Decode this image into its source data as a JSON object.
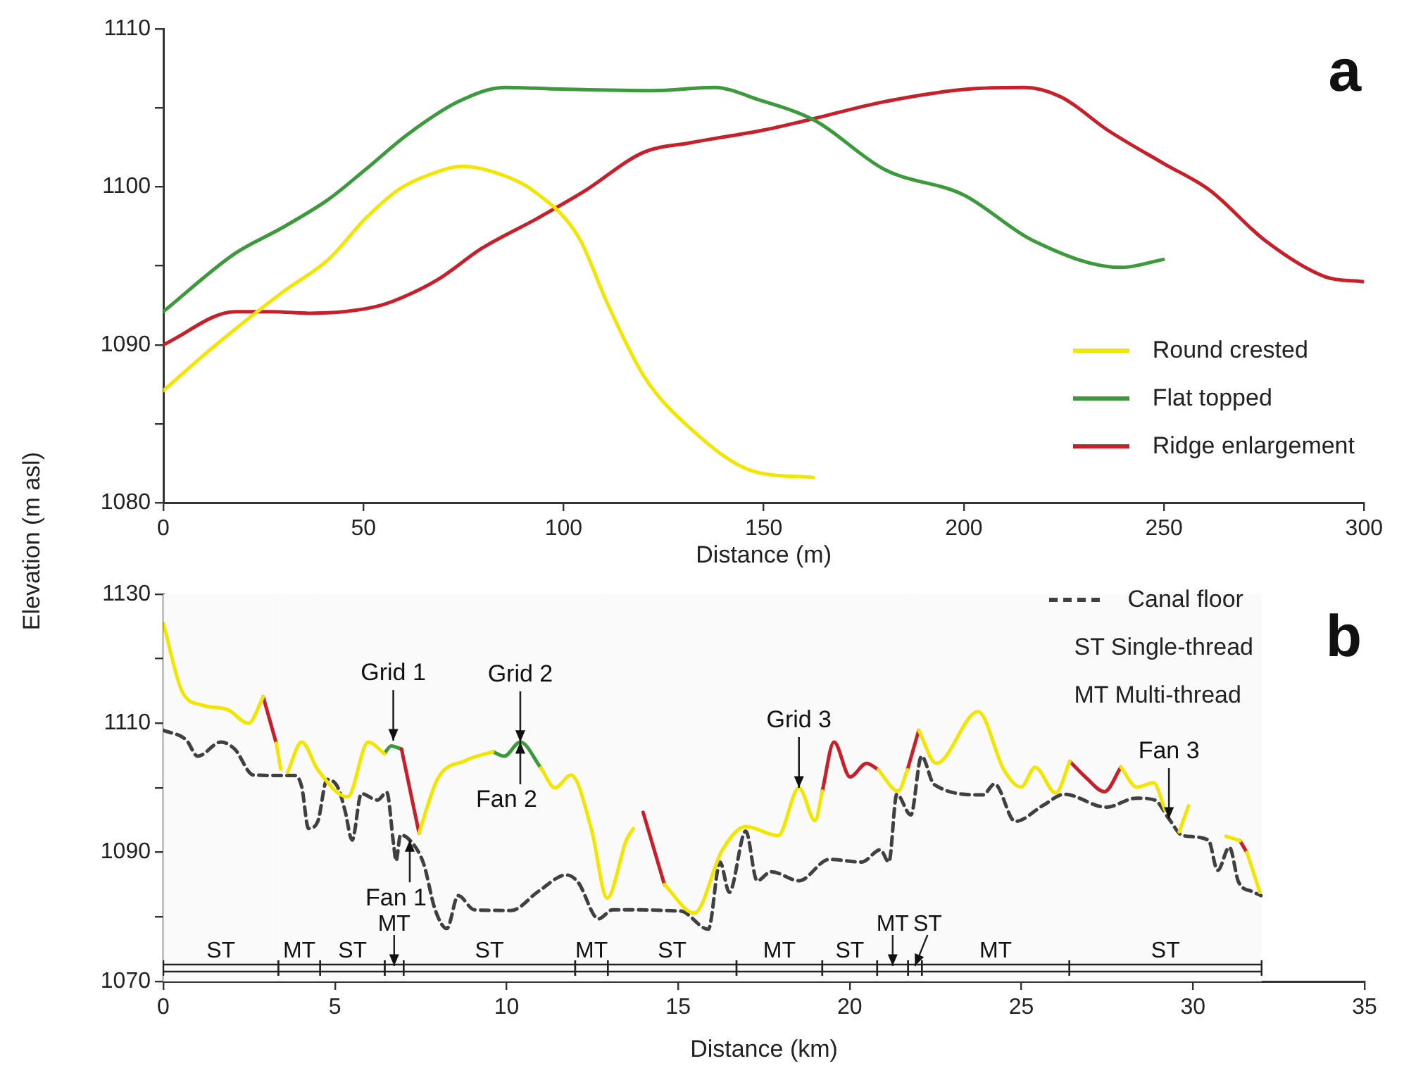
{
  "chart_data": [
    {
      "type": "line",
      "title": "a",
      "xlabel": "Distance (m)",
      "ylabel": "Elevation (m asl)",
      "xlim": [
        0,
        300
      ],
      "xticks": [
        0,
        50,
        100,
        150,
        200,
        250,
        300
      ],
      "ylim": [
        1080,
        1110
      ],
      "yticks": [
        1080,
        {
          "value": 1085,
          "label": null
        },
        1090,
        {
          "value": 1095,
          "label": null
        },
        1100,
        {
          "value": 1105,
          "label": null
        },
        1110
      ],
      "grid": false,
      "legend": "bottom right",
      "marker": "none",
      "series": [
        {
          "name": "Round crested",
          "color": "#f2e600",
          "x": [
            0,
            12.2,
            29.6,
            41.2,
            50.5,
            58.6,
            66.7,
            74.8,
            85.3,
            92.2,
            103.8,
            110.8,
            120.1,
            131.7,
            147.3,
            162.4
          ],
          "values": [
            1087.1,
            1089.8,
            1093.3,
            1095.4,
            1098,
            1099.8,
            1100.8,
            1101.3,
            1100.7,
            1099.8,
            1096.8,
            1092.7,
            1088,
            1084.7,
            1082,
            1081.6
          ]
        },
        {
          "name": "Flat topped",
          "color": "#3c9a3c",
          "x": [
            0,
            18,
            29.6,
            41.2,
            50.5,
            60.9,
            73.7,
            85.3,
            99.2,
            122.4,
            137.5,
            149,
            162.8,
            180.2,
            199.9,
            217.3,
            239.4,
            249.8
          ],
          "values": [
            1092.1,
            1095.8,
            1097.4,
            1099.2,
            1101.1,
            1103.3,
            1105.4,
            1106.3,
            1106.2,
            1106.1,
            1106.3,
            1105.5,
            1104.2,
            1101.1,
            1099.5,
            1096.6,
            1094.9,
            1095.4
          ]
        },
        {
          "name": "Ridge enlargement",
          "color": "#c8202a",
          "x": [
            0,
            18,
            27.3,
            36.5,
            52.8,
            59.7,
            69,
            79.5,
            93.4,
            105,
            120.1,
            131.7,
            150,
            160.5,
            180.2,
            201.1,
            215.1,
            224.3,
            235.9,
            249.8,
            261.4,
            275.3,
            290.4,
            299.7
          ],
          "values": [
            1090,
            1092.1,
            1092.1,
            1092,
            1092.4,
            1093,
            1094.2,
            1096.1,
            1098,
            1099.7,
            1102.2,
            1102.8,
            1103.6,
            1104.2,
            1105.4,
            1106.2,
            1106.3,
            1105.7,
            1103.6,
            1101.5,
            1099.8,
            1096.6,
            1094.3,
            1094
          ]
        }
      ]
    },
    {
      "type": "line",
      "title": "b",
      "xlabel": "Distance (km)",
      "xlim": [
        0,
        35
      ],
      "xticks": [
        0,
        5,
        10,
        15,
        20,
        25,
        30,
        35
      ],
      "ylim": [
        1070,
        1130
      ],
      "yticks": [
        1070,
        {
          "value": 1080,
          "label": null
        },
        1090,
        {
          "value": 1100,
          "label": null
        },
        1110,
        {
          "value": 1120,
          "label": null
        },
        1130
      ],
      "grid": false,
      "legend": "top right",
      "marker": "none",
      "series": [
        {
          "color": "#f2e600",
          "x": [
            0,
            0.54,
            1.14,
            1.88,
            2.48,
            2.91,
            3.1,
            3.29,
            3.42,
            3.52,
            3.62,
            4.03,
            4.5,
            5.37,
            5.97,
            6.44,
            6.9,
            7.45,
            7.99,
            8.79,
            9.6,
            10.3,
            11.0,
            11.41,
            11.88,
            12.48,
            12.93,
            13.49,
            13.69,
            14.1,
            14.6,
            15.47,
            16.29,
            16.97,
            17.91,
            18.52,
            18.99,
            19.2,
            20.0,
            20.83,
            21.41,
            21.68,
            21.85,
            22.01,
            22.52,
            23.74,
            24.49,
            24.99,
            25.4,
            26.0,
            26.41,
            27.1,
            27.9,
            28.37,
            28.85,
            29.19,
            29.4,
            29.6,
            29.87,
            30.4,
            30.96,
            31.37,
            31.47,
            31.57,
            31.95
          ],
          "values": [
            1125.5,
            1115,
            1112.8,
            1112.1,
            1110,
            1114.1,
            null,
            1106.9,
            1102.9,
            null,
            1102.4,
            1107.1,
            1102.8,
            1098.6,
            1107.1,
            1105.3,
            null,
            1093,
            1101.4,
            1104.2,
            1105.6,
            null,
            1103.1,
            1100,
            1102,
            1093.4,
            1082.9,
            1091.9,
            1093.7,
            null,
            1085,
            1080.6,
            1090.4,
            1094,
            1092.6,
            1100,
            1094.9,
            1099.5,
            null,
            1102.8,
            1099.5,
            1102.8,
            null,
            1108.9,
            1103.8,
            1111.8,
            1102.8,
            1100.1,
            1103.2,
            1099.2,
            1104.1,
            null,
            1103.2,
            1100.1,
            1100.8,
            1096.5,
            null,
            1093.2,
            1097.2,
            null,
            1092.5,
            1091.8,
            null,
            1090,
            1083.8
          ]
        },
        {
          "color": "#c8202a",
          "x": [
            2.91,
            3.29,
            5,
            6.94,
            7.45,
            10,
            13.98,
            14.6,
            17,
            19.2,
            19.54,
            20.01,
            20.49,
            20.83,
            21.2,
            21.68,
            22.01,
            24,
            26.41,
            26.9,
            27.42,
            27.9,
            30,
            31.37,
            31.57
          ],
          "values": [
            1114.1,
            1106.9,
            null,
            1106,
            1093,
            null,
            1096.2,
            1085,
            null,
            1099.5,
            1107.1,
            1101.7,
            1103.8,
            1102.8,
            null,
            1102.8,
            1108.9,
            null,
            1104.1,
            1101.5,
            1099.4,
            1103.2,
            null,
            1091.8,
            1090
          ]
        },
        {
          "color": "#3c9a3c",
          "x": [
            6.44,
            6.64,
            6.94,
            8,
            9.6,
            9.93,
            10.4,
            11.0
          ],
          "values": [
            1105.3,
            1106.5,
            1106,
            null,
            1105.6,
            1104.9,
            1107.1,
            1103.1
          ]
        },
        {
          "name": "Canal floor",
          "color": "#404040",
          "line_style": "dashed",
          "x": [
            0,
            0.67,
            1.0,
            1.68,
            2.08,
            2.62,
            3.42,
            3.83,
            4.03,
            4.23,
            4.5,
            4.77,
            5.1,
            5.3,
            5.5,
            5.77,
            6.24,
            6.51,
            6.71,
            6.78,
            6.91,
            7.18,
            7.58,
            7.92,
            8.26,
            8.59,
            9.06,
            10.13,
            10.94,
            11.74,
            12.08,
            12.68,
            13.09,
            15.07,
            15.88,
            16.22,
            16.49,
            16.97,
            17.3,
            17.71,
            18.52,
            19.4,
            20.35,
            20.89,
            21.14,
            21.37,
            21.78,
            22.09,
            22.46,
            23.88,
            24.22,
            24.82,
            25.64,
            26.25,
            27.47,
            28.35,
            28.89,
            29.3,
            29.7,
            30.45,
            30.72,
            31.06,
            31.33,
            31.74,
            31.98
          ],
          "values": [
            1108.9,
            1107.4,
            1104.9,
            1107.1,
            1106,
            1102,
            1101.9,
            1101.9,
            1100.2,
            1093.7,
            1094.8,
            1101.3,
            1099.9,
            1096.3,
            1091.9,
            1099.1,
            1098.1,
            1099.3,
            1091.2,
            1088.7,
            1092.7,
            1091.9,
            1088.3,
            1081.1,
            1078.2,
            1083.3,
            1081.1,
            1081,
            1084,
            1086.5,
            1085.4,
            1079.7,
            1081.1,
            1080.9,
            1078.1,
            1088.5,
            1083.8,
            1093.3,
            1085.6,
            1087,
            1085.6,
            1088.9,
            1088.5,
            1090.4,
            1088.5,
            1099,
            1095.8,
            1104.9,
            1100.5,
            1098.9,
            1100.6,
            1094.8,
            1097.3,
            1099,
            1097,
            1098.4,
            1098.1,
            1095.2,
            1092.6,
            1091.9,
            1087.2,
            1090.8,
            1085.4,
            1083.9,
            1083.3
          ]
        }
      ],
      "annotations": [
        {
          "text": "Grid 1",
          "x": 6.7,
          "y": 1107.3
        },
        {
          "text": "Grid 2",
          "x": 10.4,
          "y": 1107.1
        },
        {
          "text": "Grid 3",
          "x": 18.52,
          "y": 1100
        },
        {
          "text": "Fan 1",
          "x": 7.18,
          "y": 1091.9
        },
        {
          "text": "Fan 2",
          "x": 10.4,
          "y": 1107.1
        },
        {
          "text": "Fan 3",
          "x": 29.3,
          "y": 1095.2
        },
        "ST Single-thread",
        "MT Multi-thread"
      ],
      "bands": [
        {
          "axis": "x",
          "from": 0,
          "to": 3.35,
          "label": "ST"
        },
        {
          "axis": "x",
          "from": 3.35,
          "to": 4.57,
          "label": "MT"
        },
        {
          "axis": "x",
          "from": 4.57,
          "to": 6.45,
          "label": "ST"
        },
        {
          "axis": "x",
          "from": 6.45,
          "to": 7.0,
          "label": "MT"
        },
        {
          "axis": "x",
          "from": 7.0,
          "to": 12.0,
          "label": "ST"
        },
        {
          "axis": "x",
          "from": 12.0,
          "to": 12.95,
          "label": "MT"
        },
        {
          "axis": "x",
          "from": 12.95,
          "to": 16.7,
          "label": "ST"
        },
        {
          "axis": "x",
          "from": 16.7,
          "to": 19.2,
          "label": "MT"
        },
        {
          "axis": "x",
          "from": 19.2,
          "to": 20.8,
          "label": "ST"
        },
        {
          "axis": "x",
          "from": 20.8,
          "to": 21.7,
          "label": "MT"
        },
        {
          "axis": "x",
          "from": 21.7,
          "to": 22.1,
          "label": "ST"
        },
        {
          "axis": "x",
          "from": 22.1,
          "to": 26.4,
          "label": "MT"
        },
        {
          "axis": "x",
          "from": 26.4,
          "to": 32.0,
          "label": "ST"
        }
      ]
    }
  ]
}
